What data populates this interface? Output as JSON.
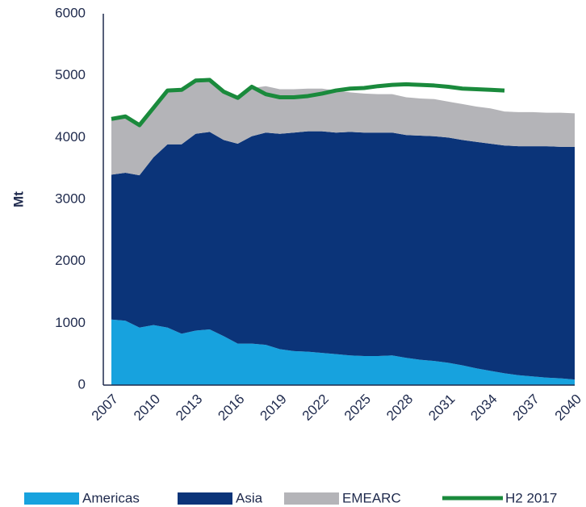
{
  "chart_data": {
    "type": "area",
    "stacked": true,
    "y_label": "Mt",
    "x": [
      2007,
      2008,
      2009,
      2010,
      2011,
      2012,
      2013,
      2014,
      2015,
      2016,
      2017,
      2018,
      2019,
      2020,
      2021,
      2022,
      2023,
      2024,
      2025,
      2026,
      2027,
      2028,
      2029,
      2030,
      2031,
      2032,
      2033,
      2034,
      2035,
      2036,
      2037,
      2038,
      2039,
      2040
    ],
    "xlim": [
      2007,
      2040
    ],
    "xticks": [
      2007,
      2010,
      2013,
      2016,
      2019,
      2022,
      2025,
      2028,
      2031,
      2034,
      2037,
      2040
    ],
    "ylim": [
      0,
      6000
    ],
    "yticks": [
      0,
      1000,
      2000,
      3000,
      4000,
      5000,
      6000
    ],
    "grid": false,
    "legend": "bottom",
    "series": [
      {
        "name": "Americas",
        "type": "area",
        "color": "#17a2de",
        "values": [
          1060,
          1040,
          930,
          970,
          930,
          830,
          880,
          900,
          790,
          670,
          670,
          650,
          580,
          550,
          540,
          520,
          500,
          480,
          470,
          470,
          480,
          440,
          410,
          390,
          360,
          320,
          270,
          230,
          190,
          160,
          140,
          120,
          110,
          90
        ]
      },
      {
        "name": "Asia",
        "type": "area",
        "color": "#0b3479",
        "values": [
          2340,
          2390,
          2460,
          2710,
          2960,
          3060,
          3180,
          3190,
          3170,
          3230,
          3350,
          3430,
          3480,
          3530,
          3560,
          3580,
          3580,
          3610,
          3610,
          3610,
          3600,
          3600,
          3620,
          3630,
          3640,
          3640,
          3660,
          3670,
          3680,
          3700,
          3720,
          3740,
          3740,
          3760
        ]
      },
      {
        "name": "EMEARC",
        "type": "area",
        "color": "#b4b4b8",
        "values": [
          900,
          920,
          810,
          820,
          870,
          890,
          860,
          850,
          790,
          750,
          780,
          750,
          720,
          700,
          690,
          690,
          680,
          640,
          630,
          620,
          620,
          610,
          600,
          600,
          580,
          580,
          570,
          570,
          550,
          550,
          550,
          540,
          550,
          540
        ]
      },
      {
        "name": "H2 2017",
        "type": "line",
        "color": "#1a8a3c",
        "values": [
          4300,
          4340,
          4200,
          4480,
          4760,
          4770,
          4920,
          4930,
          4740,
          4640,
          4820,
          4700,
          4650,
          4650,
          4670,
          4710,
          4760,
          4790,
          4800,
          4830,
          4850,
          4860,
          4850,
          4840,
          4820,
          4790,
          4780,
          4770,
          4760,
          null,
          null,
          null,
          null,
          null
        ]
      }
    ]
  }
}
